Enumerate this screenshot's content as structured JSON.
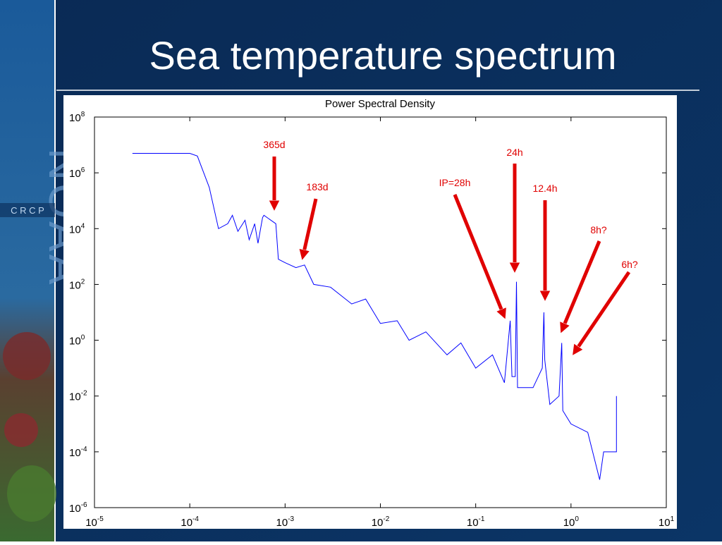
{
  "title": "Sea temperature spectrum",
  "logo": {
    "text": "NOAA",
    "subtext": "C R C P"
  },
  "chart_data": {
    "type": "line",
    "title": "Power Spectral Density",
    "x": [
      2.5e-05,
      0.0001,
      0.00012,
      0.00016,
      0.0002,
      0.00025,
      0.00028,
      0.00032,
      0.00038,
      0.00042,
      0.00048,
      0.00052,
      0.00058,
      0.0006,
      0.0008,
      0.00085,
      0.001,
      0.0013,
      0.0016,
      0.002,
      0.003,
      0.005,
      0.007,
      0.01,
      0.015,
      0.02,
      0.03,
      0.05,
      0.07,
      0.1,
      0.15,
      0.2,
      0.23,
      0.24,
      0.26,
      0.268,
      0.275,
      0.4,
      0.5,
      0.52,
      0.53,
      0.6,
      0.75,
      0.8,
      0.82,
      1.0,
      1.5,
      2,
      2.2,
      3,
      3
    ],
    "series": [
      {
        "name": "PSD",
        "color": "#0000ff",
        "values": [
          5000000.0,
          5000000.0,
          4000000.0,
          300000.0,
          10000.0,
          15000.0,
          30000.0,
          8000.0,
          20000.0,
          4000.0,
          15000.0,
          3000.0,
          25000.0,
          30000.0,
          15000.0,
          800.0,
          600.0,
          400.0,
          500.0,
          100.0,
          80.0,
          20.0,
          30.0,
          4,
          5,
          1,
          2,
          0.3,
          0.8,
          0.1,
          0.3,
          0.03,
          5,
          0.05,
          0.05,
          125,
          0.02,
          0.02,
          0.1,
          10,
          0.2,
          0.005,
          0.01,
          0.8,
          0.003,
          0.001,
          0.0005,
          1e-05,
          0.0001,
          0.0001,
          0.01
        ]
      }
    ],
    "xlim": [
      1e-05,
      10
    ],
    "ylim": [
      1e-06,
      100000000.0
    ],
    "xscale": "log",
    "yscale": "log",
    "grid": false,
    "xticks": [
      {
        "value": 1e-05,
        "label": "10",
        "exponent": "-5"
      },
      {
        "value": 0.0001,
        "label": "10",
        "exponent": "-4"
      },
      {
        "value": 0.001,
        "label": "10",
        "exponent": "-3"
      },
      {
        "value": 0.01,
        "label": "10",
        "exponent": "-2"
      },
      {
        "value": 0.1,
        "label": "10",
        "exponent": "-1"
      },
      {
        "value": 1,
        "label": "10",
        "exponent": "0"
      },
      {
        "value": 10,
        "label": "10",
        "exponent": "1"
      }
    ],
    "yticks": [
      {
        "value": 1e-06,
        "label": "10",
        "exponent": "-6"
      },
      {
        "value": 0.0001,
        "label": "10",
        "exponent": "-4"
      },
      {
        "value": 0.01,
        "label": "10",
        "exponent": "-2"
      },
      {
        "value": 1,
        "label": "10",
        "exponent": "0"
      },
      {
        "value": 100,
        "label": "10",
        "exponent": "2"
      },
      {
        "value": 10000.0,
        "label": "10",
        "exponent": "4"
      },
      {
        "value": 1000000.0,
        "label": "10",
        "exponent": "6"
      },
      {
        "value": 100000000.0,
        "label": "10",
        "exponent": "8"
      }
    ],
    "annotations": [
      "365d",
      "183d",
      "IP=28h",
      "24h",
      "12.4h",
      "8h?",
      "6h?"
    ],
    "annotation_color": "#e00000"
  }
}
